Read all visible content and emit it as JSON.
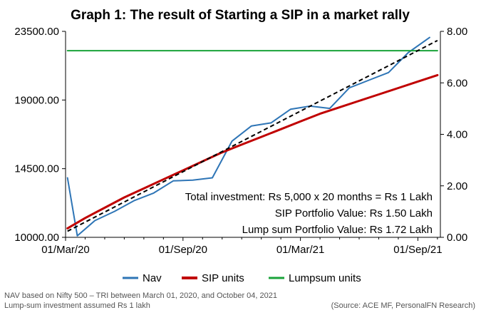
{
  "chart_data": {
    "type": "line",
    "title": "Graph 1: The result of Starting a SIP in a market rally",
    "x_tick_labels": [
      "01/Mar/20",
      "01/Sep/20",
      "01/Mar/21",
      "01/Sep/21"
    ],
    "left_axis": {
      "ylim": [
        10000,
        23500
      ],
      "ticks": [
        "10000.00",
        "14500.00",
        "19000.00",
        "23500.00"
      ]
    },
    "right_axis": {
      "ylim": [
        0,
        8
      ],
      "ticks": [
        "0.00",
        "2.00",
        "4.00",
        "6.00",
        "8.00"
      ]
    },
    "x_range_months": [
      0,
      19.15
    ],
    "series": [
      {
        "name": "Nav",
        "axis": "left",
        "color": "#2e75b6",
        "x": [
          0.1,
          0.6,
          1.5,
          2.5,
          3.5,
          4.5,
          5.5,
          6.5,
          7.5,
          8.5,
          9.5,
          10.5,
          11.5,
          12.5,
          13.5,
          14.5,
          15.5,
          16.5,
          17.5,
          18.6
        ],
        "values": [
          13900,
          10100,
          11100,
          11700,
          12400,
          12900,
          13700,
          13750,
          13900,
          16300,
          17300,
          17500,
          18400,
          18600,
          18450,
          19800,
          20300,
          20800,
          22100,
          23100
        ]
      },
      {
        "name": "SIP units",
        "axis": "right",
        "color": "#c00000",
        "x": [
          0.1,
          1.0,
          2.0,
          3.0,
          4.0,
          5.0,
          6.0,
          7.0,
          8.0,
          9.0,
          10.0,
          11.0,
          12.0,
          13.0,
          14.0,
          15.0,
          16.0,
          17.0,
          18.0,
          19.0
        ],
        "values": [
          0.35,
          0.75,
          1.15,
          1.55,
          1.9,
          2.25,
          2.6,
          2.95,
          3.3,
          3.6,
          3.9,
          4.2,
          4.5,
          4.8,
          5.05,
          5.3,
          5.55,
          5.8,
          6.05,
          6.3
        ]
      },
      {
        "name": "Lumpsum units",
        "axis": "right",
        "color": "#1aa33a",
        "x": [
          0.1,
          19.0
        ],
        "values": [
          7.25,
          7.25
        ]
      }
    ],
    "trendline": {
      "axis": "left",
      "x": [
        0.1,
        19.0
      ],
      "values": [
        10400,
        22900
      ],
      "color": "#000000",
      "dashed": true
    },
    "annotations": [
      "Total investment: Rs 5,000 x 20 months = Rs 1 Lakh",
      "SIP Portfolio Value: Rs 1.50 Lakh",
      "Lump sum Portfolio Value: Rs 1.72 Lakh"
    ],
    "legend": {
      "placement": "bottom",
      "entries": [
        "Nav",
        "SIP units",
        "Lumpsum units"
      ]
    },
    "grid": false
  },
  "footnotes": {
    "left": [
      "NAV based on Nifty 500 – TRI between March 01, 2020, and October 04, 2021",
      "Lump-sum investment assumed Rs 1 lakh"
    ],
    "right": "(Source: ACE MF, PersonalFN Research)"
  }
}
